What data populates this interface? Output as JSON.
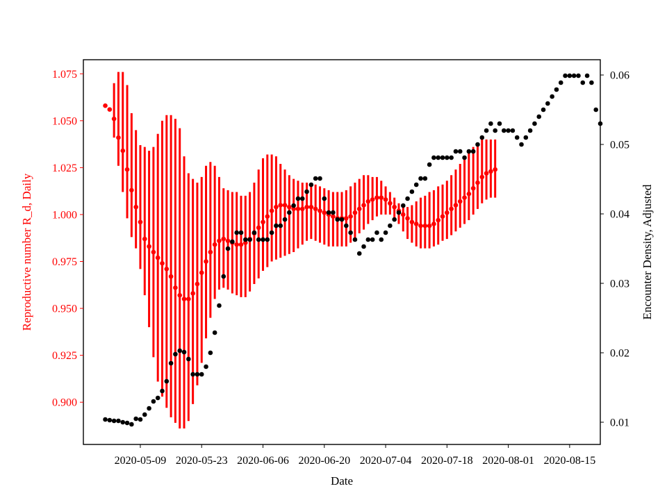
{
  "chart_data": {
    "type": "scatter",
    "title": "",
    "xlabel": "Date",
    "ylabel_left": "Reproductive number R_d, Daily",
    "ylabel_right": "Encounter Density, Adjusted",
    "colors": {
      "left_axis": "#ff0000",
      "right_axis": "#000000",
      "errorbar": "#ff0000"
    },
    "x_ticks": [
      "2020-05-09",
      "2020-05-23",
      "2020-06-06",
      "2020-06-20",
      "2020-07-04",
      "2020-07-18",
      "2020-08-01",
      "2020-08-15"
    ],
    "x_range": [
      "2020-04-26",
      "2020-08-22"
    ],
    "y_left_ticks": [
      "0.900",
      "0.925",
      "0.950",
      "0.975",
      "1.000",
      "1.025",
      "1.050",
      "1.075"
    ],
    "y_left_range": [
      0.8775,
      1.0825
    ],
    "y_right_ticks": [
      "0.01",
      "0.02",
      "0.03",
      "0.04",
      "0.05",
      "0.06"
    ],
    "y_right_range": [
      0.0068,
      0.0622
    ],
    "grid": false,
    "legend": "none",
    "series": [
      {
        "axis": "left",
        "start_date": "2020-05-01",
        "values": [
          1.058,
          1.056,
          1.051,
          1.041,
          1.034,
          1.024,
          1.013,
          1.004,
          0.996,
          0.987,
          0.983,
          0.98,
          0.977,
          0.974,
          0.971,
          0.967,
          0.961,
          0.957,
          0.955,
          0.955,
          0.958,
          0.963,
          0.969,
          0.975,
          0.98,
          0.984,
          0.986,
          0.987,
          0.986,
          0.985,
          0.984,
          0.984,
          0.985,
          0.987,
          0.99,
          0.993,
          0.996,
          0.999,
          1.002,
          1.004,
          1.005,
          1.005,
          1.004,
          1.003,
          1.003,
          1.003,
          1.004,
          1.004,
          1.003,
          1.002,
          1.001,
          1.0,
          0.999,
          0.998,
          0.998,
          0.998,
          0.999,
          1.001,
          1.003,
          1.005,
          1.007,
          1.008,
          1.009,
          1.009,
          1.008,
          1.006,
          1.004,
          1.002,
          1.0,
          0.998,
          0.996,
          0.995,
          0.994,
          0.994,
          0.994,
          0.995,
          0.997,
          0.999,
          1.001,
          1.003,
          1.005,
          1.007,
          1.009,
          1.011,
          1.014,
          1.017,
          1.02,
          1.022,
          1.023,
          1.024
        ],
        "lower": [
          1.058,
          1.056,
          1.041,
          1.026,
          1.012,
          0.998,
          0.988,
          0.982,
          0.971,
          0.957,
          0.94,
          0.924,
          0.911,
          0.903,
          0.897,
          0.892,
          0.889,
          0.886,
          0.886,
          0.89,
          0.899,
          0.909,
          0.921,
          0.934,
          0.945,
          0.955,
          0.96,
          0.961,
          0.96,
          0.958,
          0.957,
          0.956,
          0.956,
          0.959,
          0.963,
          0.966,
          0.97,
          0.972,
          0.975,
          0.976,
          0.977,
          0.978,
          0.979,
          0.98,
          0.982,
          0.984,
          0.986,
          0.987,
          0.986,
          0.985,
          0.984,
          0.983,
          0.983,
          0.983,
          0.983,
          0.983,
          0.985,
          0.987,
          0.99,
          0.992,
          0.995,
          0.997,
          0.999,
          1.0,
          1.0,
          1.0,
          0.998,
          0.995,
          0.991,
          0.987,
          0.985,
          0.983,
          0.982,
          0.982,
          0.982,
          0.983,
          0.984,
          0.986,
          0.987,
          0.989,
          0.991,
          0.993,
          0.995,
          0.997,
          1.0,
          1.003,
          1.006,
          1.008,
          1.009,
          1.009
        ],
        "upper": [
          1.058,
          1.056,
          1.07,
          1.076,
          1.076,
          1.069,
          1.054,
          1.045,
          1.037,
          1.036,
          1.034,
          1.036,
          1.043,
          1.05,
          1.053,
          1.053,
          1.051,
          1.046,
          1.031,
          1.022,
          1.019,
          1.017,
          1.02,
          1.026,
          1.028,
          1.026,
          1.02,
          1.014,
          1.013,
          1.012,
          1.012,
          1.01,
          1.01,
          1.012,
          1.017,
          1.024,
          1.03,
          1.032,
          1.032,
          1.031,
          1.027,
          1.024,
          1.021,
          1.019,
          1.018,
          1.017,
          1.017,
          1.017,
          1.016,
          1.015,
          1.014,
          1.013,
          1.012,
          1.012,
          1.012,
          1.013,
          1.015,
          1.017,
          1.019,
          1.021,
          1.021,
          1.02,
          1.02,
          1.018,
          1.015,
          1.012,
          1.009,
          1.006,
          1.004,
          1.004,
          1.005,
          1.007,
          1.009,
          1.01,
          1.012,
          1.013,
          1.015,
          1.016,
          1.018,
          1.021,
          1.024,
          1.027,
          1.03,
          1.033,
          1.036,
          1.038,
          1.04,
          1.04,
          1.04,
          1.04
        ]
      },
      {
        "axis": "right",
        "start_date": "2020-05-01",
        "values": [
          0.0104,
          0.0103,
          0.0102,
          0.0102,
          0.01,
          0.0099,
          0.0097,
          0.0105,
          0.0104,
          0.0111,
          0.012,
          0.013,
          0.0135,
          0.0145,
          0.0159,
          0.0185,
          0.0198,
          0.0203,
          0.0201,
          0.0191,
          0.0169,
          0.0169,
          0.0169,
          0.018,
          0.02,
          0.0229,
          0.0268,
          0.031,
          0.035,
          0.036,
          0.0373,
          0.0373,
          0.0363,
          0.0363,
          0.0373,
          0.0363,
          0.0363,
          0.0363,
          0.0373,
          0.0383,
          0.0383,
          0.0392,
          0.0402,
          0.0412,
          0.0422,
          0.0422,
          0.0432,
          0.0442,
          0.0451,
          0.0451,
          0.0422,
          0.0402,
          0.0402,
          0.0392,
          0.0392,
          0.0383,
          0.0373,
          0.0363,
          0.0343,
          0.0353,
          0.0363,
          0.0363,
          0.0373,
          0.0363,
          0.0373,
          0.0383,
          0.0392,
          0.0402,
          0.0412,
          0.0422,
          0.0432,
          0.0442,
          0.0451,
          0.0451,
          0.0471,
          0.0481,
          0.0481,
          0.0481,
          0.0481,
          0.0481,
          0.049,
          0.049,
          0.0481,
          0.049,
          0.049,
          0.05,
          0.051,
          0.052,
          0.053,
          0.052,
          0.053,
          0.052,
          0.052,
          0.052,
          0.051,
          0.05,
          0.051,
          0.052,
          0.053,
          0.054,
          0.055,
          0.0559,
          0.0569,
          0.0579,
          0.0589,
          0.0599,
          0.0599,
          0.0599,
          0.0599,
          0.0589,
          0.0599,
          0.0589,
          0.055,
          0.053
        ]
      }
    ]
  }
}
